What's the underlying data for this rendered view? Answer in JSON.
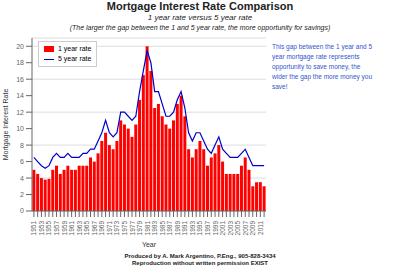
{
  "chart_data": {
    "type": "bar",
    "title": "Mortgage Interest Rate Comparison",
    "subtitle": [
      "1 year rate versus 5 year rate",
      "(The larger the gap between the 1 and 5 year rate, the more opportunity for savings)"
    ],
    "xlabel": "Year",
    "ylabel": "Mortgage Interest Rate",
    "categories": [
      "1951",
      null,
      "1953",
      null,
      "1955",
      null,
      "1957",
      null,
      "1959",
      null,
      "1961",
      null,
      "1963",
      null,
      "1965",
      null,
      "1967",
      null,
      "1969",
      null,
      "1971",
      null,
      "1973",
      null,
      "1975",
      null,
      "1977",
      null,
      "1979",
      null,
      "1981",
      null,
      "1983",
      null,
      "1985",
      null,
      "1987",
      null,
      "1989",
      null,
      "1991",
      null,
      "1993",
      null,
      "1995",
      null,
      "1997",
      null,
      "1999",
      null,
      "2001",
      null,
      "2003",
      null,
      "2005",
      null,
      "2007",
      null,
      "2009",
      null,
      "2011",
      null
    ],
    "series": [
      {
        "name": "1 year rate",
        "type": "bar",
        "color": "#ff0000",
        "values": [
          5.0,
          4.5,
          4.0,
          3.8,
          3.9,
          5.0,
          5.5,
          4.5,
          5.0,
          5.5,
          5.0,
          5.0,
          5.5,
          5.5,
          5.5,
          6.5,
          6.0,
          7.0,
          8.5,
          9.5,
          8.0,
          7.5,
          8.5,
          11.0,
          10.5,
          10.0,
          9.0,
          10.5,
          13.5,
          16.5,
          20.0,
          17.0,
          12.5,
          13.0,
          11.5,
          10.5,
          10.0,
          11.0,
          13.0,
          14.0,
          11.5,
          7.5,
          6.5,
          7.5,
          8.5,
          7.5,
          5.5,
          6.5,
          7.0,
          8.0,
          6.0,
          4.5,
          4.5,
          4.5,
          4.5,
          5.5,
          6.5,
          5.0,
          3.0,
          3.5,
          3.5,
          3.0
        ]
      },
      {
        "name": "5 year rate",
        "type": "line",
        "color": "#0000cc",
        "values": [
          6.5,
          6.0,
          5.5,
          5.2,
          5.5,
          6.5,
          7.0,
          6.5,
          6.5,
          7.0,
          6.5,
          6.5,
          6.5,
          7.0,
          7.0,
          7.5,
          7.5,
          8.5,
          9.5,
          11.0,
          9.5,
          9.0,
          9.5,
          12.0,
          12.0,
          11.5,
          11.0,
          11.5,
          14.5,
          17.0,
          19.5,
          18.0,
          14.5,
          14.5,
          13.0,
          11.5,
          11.5,
          12.0,
          13.5,
          14.5,
          12.5,
          9.5,
          8.5,
          9.5,
          9.5,
          8.5,
          7.5,
          7.0,
          8.0,
          9.0,
          7.5,
          7.0,
          6.5,
          6.5,
          6.5,
          7.0,
          7.5,
          6.5,
          5.5,
          5.5,
          5.5,
          5.5
        ]
      }
    ],
    "ylim": [
      0,
      21
    ],
    "yticks": [
      0,
      2,
      4,
      6,
      8,
      10,
      12,
      14,
      16,
      18,
      20
    ],
    "grid": true,
    "legend": "upper left",
    "annotations": [
      {
        "text": "This gap between the 1 year and 5\nyear mortgage rate represents\nopportunity to save money, the\nwider the gap the more money you\nsave!",
        "color": "#3355cc"
      },
      {
        "text": "Produced by A. Mark Argentino, P.Eng., 905-828-3434\nReproduction without written permission EXIST"
      }
    ]
  }
}
